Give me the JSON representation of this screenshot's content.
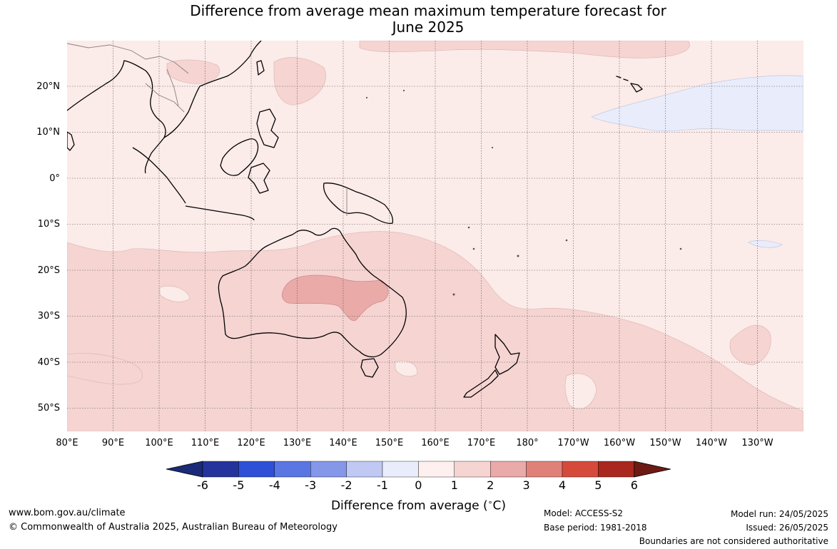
{
  "title_line1": "Difference from average mean maximum temperature forecast for",
  "title_line2": "June 2025",
  "colors": {
    "ocean_base": "#fbebe9",
    "anomaly_1_2": "#f5d4d2",
    "anomaly_2_3": "#e9aaa8",
    "cool_0_neg1": "#e9edfb",
    "coast": "#000000",
    "border": "#8a7f7f"
  },
  "lat_labels": [
    {
      "text": "20°N",
      "lat": 20
    },
    {
      "text": "10°N",
      "lat": 10
    },
    {
      "text": "0°",
      "lat": 0
    },
    {
      "text": "10°S",
      "lat": -10
    },
    {
      "text": "20°S",
      "lat": -20
    },
    {
      "text": "30°S",
      "lat": -30
    },
    {
      "text": "40°S",
      "lat": -40
    },
    {
      "text": "50°S",
      "lat": -50
    }
  ],
  "lon_labels": [
    {
      "text": "80°E",
      "lon": 80
    },
    {
      "text": "90°E",
      "lon": 90
    },
    {
      "text": "100°E",
      "lon": 100
    },
    {
      "text": "110°E",
      "lon": 110
    },
    {
      "text": "120°E",
      "lon": 120
    },
    {
      "text": "130°E",
      "lon": 130
    },
    {
      "text": "140°E",
      "lon": 140
    },
    {
      "text": "150°E",
      "lon": 150
    },
    {
      "text": "160°E",
      "lon": 160
    },
    {
      "text": "170°E",
      "lon": 170
    },
    {
      "text": "180°",
      "lon": 180
    },
    {
      "text": "170°W",
      "lon": 190
    },
    {
      "text": "160°W",
      "lon": 200
    },
    {
      "text": "150°W",
      "lon": 210
    },
    {
      "text": "140°W",
      "lon": 220
    },
    {
      "text": "130°W",
      "lon": 230
    }
  ],
  "colorbar": {
    "ticks": [
      "-6",
      "-5",
      "-4",
      "-3",
      "-2",
      "-1",
      "0",
      "1",
      "2",
      "3",
      "4",
      "5",
      "6"
    ],
    "segment_colors": [
      "#24349c",
      "#2e4fd6",
      "#5a76e3",
      "#8497e8",
      "#bfc9f3",
      "#e9edfb",
      "#fdf0ee",
      "#f5d4d2",
      "#e9aaa8",
      "#e08179",
      "#d64a3c",
      "#a9271f"
    ],
    "under_color": "#1b2a78",
    "over_color": "#6e1a14",
    "label": "Difference from average (",
    "unit": "C)",
    "degree_mark": "∘"
  },
  "footer": {
    "website": "www.bom.gov.au/climate",
    "copyright": "© Commonwealth of Australia 2025, Australian Bureau of Meteorology",
    "model": "Model: ACCESS-S2",
    "base_period": "Base period: 1981-2018",
    "model_run": "Model run: 24/05/2025",
    "issued": "Issued: 26/05/2025",
    "disclaimer": "Boundaries are not considered authoritative"
  }
}
